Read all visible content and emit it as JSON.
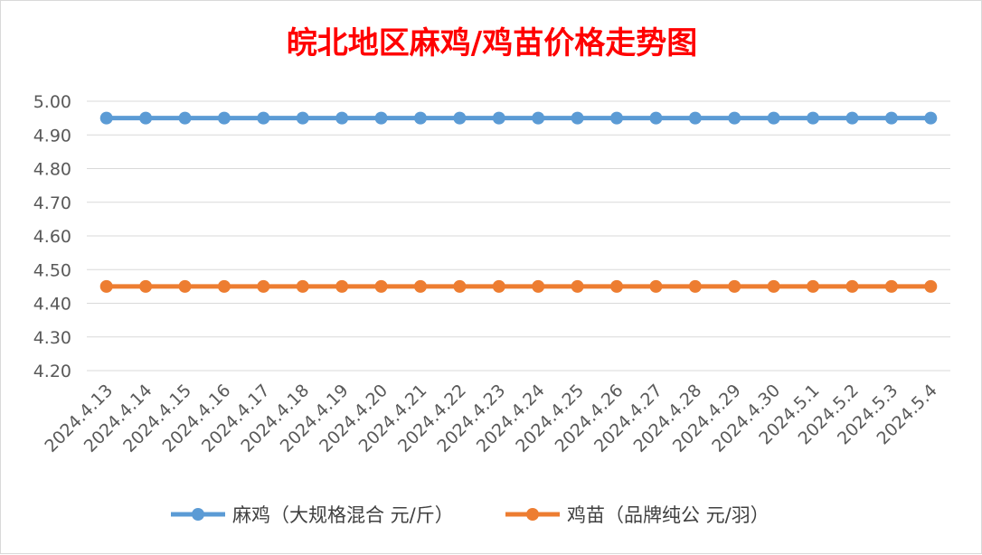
{
  "chart_data": {
    "type": "line",
    "title": "皖北地区麻鸡/鸡苗价格走势图",
    "xlabel": "",
    "ylabel": "",
    "ylim": [
      4.2,
      5.0
    ],
    "y_ticks": [
      "4.20",
      "4.30",
      "4.40",
      "4.50",
      "4.60",
      "4.70",
      "4.80",
      "4.90",
      "5.00"
    ],
    "categories": [
      "2024.4.13",
      "2024.4.14",
      "2024.4.15",
      "2024.4.16",
      "2024.4.17",
      "2024.4.18",
      "2024.4.19",
      "2024.4.20",
      "2024.4.21",
      "2024.4.22",
      "2024.4.23",
      "2024.4.24",
      "2024.4.25",
      "2024.4.26",
      "2024.4.27",
      "2024.4.28",
      "2024.4.29",
      "2024.4.30",
      "2024.5.1",
      "2024.5.2",
      "2024.5.3",
      "2024.5.4"
    ],
    "series": [
      {
        "name": "麻鸡（大规格混合 元/斤）",
        "color": "#5b9bd5",
        "values": [
          4.95,
          4.95,
          4.95,
          4.95,
          4.95,
          4.95,
          4.95,
          4.95,
          4.95,
          4.95,
          4.95,
          4.95,
          4.95,
          4.95,
          4.95,
          4.95,
          4.95,
          4.95,
          4.95,
          4.95,
          4.95,
          4.95
        ]
      },
      {
        "name": "鸡苗（品牌纯公 元/羽）",
        "color": "#ed7d31",
        "values": [
          4.45,
          4.45,
          4.45,
          4.45,
          4.45,
          4.45,
          4.45,
          4.45,
          4.45,
          4.45,
          4.45,
          4.45,
          4.45,
          4.45,
          4.45,
          4.45,
          4.45,
          4.45,
          4.45,
          4.45,
          4.45,
          4.45
        ]
      }
    ],
    "grid": true,
    "legend_position": "bottom"
  }
}
